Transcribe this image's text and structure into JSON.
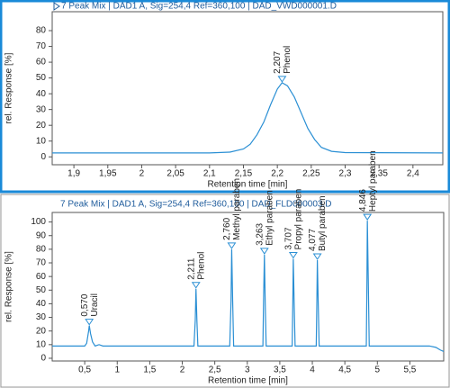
{
  "chart_data": [
    {
      "type": "line",
      "title": "7 Peak Mix | DAD1 A, Sig=254,4 Ref=360,100 | DAD_VWD000001.D",
      "xlabel": "Retention time [min]",
      "ylabel": "rel. Response [%]",
      "color": "#2a8fd4",
      "selected": true,
      "xlim": [
        1.868,
        2.444
      ],
      "ylim": [
        -5,
        92
      ],
      "xticks": [
        {
          "value": 1.9,
          "label": "1,9"
        },
        {
          "value": 1.95,
          "label": "1,95"
        },
        2,
        {
          "value": 2.05,
          "label": "2,05"
        },
        {
          "value": 2.1,
          "label": "2,1"
        },
        {
          "value": 2.15,
          "label": "2,15"
        },
        {
          "value": 2.2,
          "label": "2,2"
        },
        {
          "value": 2.25,
          "label": "2,25"
        },
        {
          "value": 2.3,
          "label": "2,3"
        },
        {
          "value": 2.35,
          "label": "2,35"
        },
        {
          "value": 2.4,
          "label": "2,4"
        }
      ],
      "yticks": [
        0,
        10,
        20,
        30,
        40,
        50,
        60,
        70,
        80
      ],
      "x": [
        1.868,
        2.1,
        2.13,
        2.15,
        2.16,
        2.17,
        2.18,
        2.19,
        2.2,
        2.207,
        2.215,
        2.225,
        2.235,
        2.245,
        2.255,
        2.265,
        2.28,
        2.3,
        2.444
      ],
      "values": [
        2.5,
        2.5,
        3,
        5,
        8,
        14,
        22,
        33,
        43,
        47,
        45,
        38,
        28,
        18,
        11,
        6,
        3.5,
        2.7,
        2.5
      ],
      "peaks": [
        {
          "time": 2.207,
          "time_label": "2,207",
          "name": "Phenol",
          "height": 47
        }
      ]
    },
    {
      "type": "line",
      "title": "7 Peak Mix | DAD1 A, Sig=254,4 Ref=360,100 | DAD_FLD000003.D",
      "xlabel": "Retention time [min]",
      "ylabel": "rel. Response [%]",
      "color": "#2a8fd4",
      "selected": false,
      "xlim": [
        0,
        6.02
      ],
      "ylim": [
        -2,
        107
      ],
      "xticks": [
        {
          "value": 0.5,
          "label": "0,5"
        },
        1,
        {
          "value": 1.5,
          "label": "1,5"
        },
        2,
        {
          "value": 2.5,
          "label": "2,5"
        },
        3,
        {
          "value": 3.5,
          "label": "3,5"
        },
        4,
        {
          "value": 4.5,
          "label": "4,5"
        },
        5,
        {
          "value": 5.5,
          "label": "5,5"
        }
      ],
      "yticks": [
        0,
        10,
        20,
        30,
        40,
        50,
        60,
        70,
        80,
        90,
        100
      ],
      "x": [
        0,
        0.5,
        0.53,
        0.56,
        0.57,
        0.59,
        0.62,
        0.66,
        0.72,
        0.78,
        2.18,
        2.2,
        2.211,
        2.225,
        2.24,
        2.73,
        2.75,
        2.76,
        2.775,
        2.79,
        3.24,
        3.25,
        3.263,
        3.275,
        3.29,
        3.69,
        3.7,
        3.707,
        3.72,
        3.735,
        4.06,
        4.07,
        4.077,
        4.09,
        4.105,
        4.83,
        4.84,
        4.846,
        4.86,
        4.875,
        5.8,
        5.9,
        5.97,
        6.02
      ],
      "values": [
        9,
        9,
        11,
        20,
        24,
        18,
        12,
        9,
        10,
        9,
        9,
        28,
        51,
        28,
        9,
        9,
        42,
        80,
        42,
        9,
        9,
        42,
        76,
        42,
        9,
        9,
        42,
        73,
        42,
        9,
        9,
        42,
        72,
        42,
        9,
        9,
        58,
        101,
        58,
        9,
        9,
        8,
        6,
        5
      ],
      "peaks": [
        {
          "time": 0.57,
          "time_label": "0,570",
          "name": "Uracil",
          "height": 24
        },
        {
          "time": 2.211,
          "time_label": "2,211",
          "name": "Phenol",
          "height": 51
        },
        {
          "time": 2.76,
          "time_label": "2,760",
          "name": "Methyl paraben",
          "height": 80
        },
        {
          "time": 3.263,
          "time_label": "3,263",
          "name": "Ethyl paraben",
          "height": 76
        },
        {
          "time": 3.707,
          "time_label": "3,707",
          "name": "Propyl paraben",
          "height": 73
        },
        {
          "time": 4.077,
          "time_label": "4,077",
          "name": "Butyl paraben",
          "height": 72
        },
        {
          "time": 4.846,
          "time_label": "4,846",
          "name": "Heptyl paraben",
          "height": 101
        }
      ]
    }
  ]
}
